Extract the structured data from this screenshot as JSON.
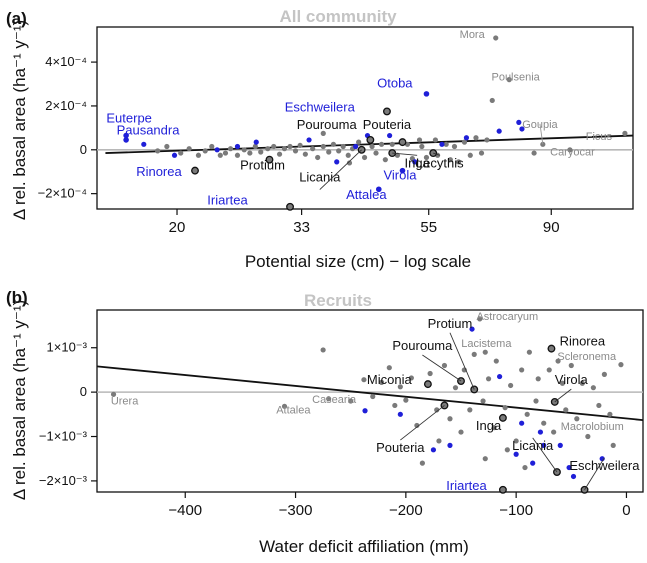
{
  "colors": {
    "gray_point": "#7a7a7a",
    "blue_point": "#1f1fd8",
    "highlight_point": "#3a3a3a",
    "zero_line": "#b8b8b8",
    "fit_line": "#111111",
    "blue_label": "#1f1fd8",
    "gray_label": "#8a8a8a",
    "black_label": "#111111"
  },
  "chart_data": [
    {
      "panel": "(a)",
      "type": "scatter",
      "title": "All community",
      "xlabel": "Potential size (cm) − log scale",
      "ylabel": "Δ rel. basal area (ha⁻¹ y⁻¹)",
      "x_scale": "log",
      "x_ticks": [
        20,
        33,
        55,
        90
      ],
      "xlim": [
        14.5,
        125
      ],
      "y_ticks": [
        -0.0002,
        0,
        0.0002,
        0.0004
      ],
      "y_tick_labels": [
        "−2×10⁻⁴",
        "0",
        "2×10⁻⁴",
        "4×10⁻⁴"
      ],
      "ylim": [
        -0.00027,
        0.00056
      ],
      "fit_line": [
        [
          15,
          -1.5e-05
        ],
        [
          125,
          6.5e-05
        ]
      ],
      "zero_line": 0,
      "highlighted": [
        {
          "name": "Euterpe",
          "x": 16.3,
          "y": 6.5e-05,
          "color": "blue"
        },
        {
          "name": "Pausandra",
          "x": 16.3,
          "y": 4.5e-05,
          "color": "blue"
        },
        {
          "name": "Rinorea",
          "x": 21.5,
          "y": -9.5e-05,
          "color": "black"
        },
        {
          "name": "Protium",
          "x": 29,
          "y": -4.5e-05,
          "color": "black"
        },
        {
          "name": "Iriartea",
          "x": 31.5,
          "y": -0.00026,
          "color": "black"
        },
        {
          "name": "Eschweilera",
          "x": 46.5,
          "y": 0.000175,
          "color": "black"
        },
        {
          "name": "Pourouma",
          "x": 43.5,
          "y": 4.5e-05,
          "color": "black"
        },
        {
          "name": "Pouteria",
          "x": 49.5,
          "y": 3.5e-05,
          "color": "black"
        },
        {
          "name": "Licania",
          "x": 42,
          "y": 0.0,
          "color": "black"
        },
        {
          "name": "Otoba",
          "x": 54.5,
          "y": 0.000255,
          "color": "blue"
        },
        {
          "name": "Attalea",
          "x": 45,
          "y": -0.00018,
          "color": "blue"
        },
        {
          "name": "Virola",
          "x": 49.5,
          "y": -9.5e-05,
          "color": "blue"
        },
        {
          "name": "Inga",
          "x": 47.5,
          "y": -1.5e-05,
          "color": "black"
        },
        {
          "name": "Lecythis",
          "x": 56,
          "y": -1.5e-05,
          "color": "black"
        },
        {
          "name": "Mora",
          "x": 72,
          "y": 0.00051,
          "color": "gray"
        },
        {
          "name": "Poulsenia",
          "x": 76,
          "y": 0.00032,
          "color": "gray"
        },
        {
          "name": "Goupia",
          "x": 87,
          "y": 2.5e-05,
          "color": "gray"
        },
        {
          "name": "Ficus",
          "x": 121,
          "y": 7.5e-05,
          "color": "gray"
        },
        {
          "name": "Caryocar",
          "x": 97,
          "y": 0.0,
          "color": "gray"
        }
      ],
      "labels": [
        {
          "text": "Euterpe",
          "x": 16.5,
          "y": 0.000125,
          "color": "blue"
        },
        {
          "text": "Pausandra",
          "x": 17.8,
          "y": 7e-05,
          "color": "blue"
        },
        {
          "text": "Rinorea",
          "x": 18.6,
          "y": -0.00012,
          "color": "blue"
        },
        {
          "text": "Protium",
          "x": 28.2,
          "y": -9e-05,
          "color": "black"
        },
        {
          "text": "Iriartea",
          "x": 24.5,
          "y": -0.00025,
          "color": "blue"
        },
        {
          "text": "Eschweilera",
          "x": 35.5,
          "y": 0.000175,
          "color": "blue"
        },
        {
          "text": "Pourouma",
          "x": 36.5,
          "y": 9.5e-05,
          "color": "black"
        },
        {
          "text": "Pouteria",
          "x": 46.5,
          "y": 9.5e-05,
          "color": "black"
        },
        {
          "text": "Licania",
          "x": 35.5,
          "y": -0.000145,
          "color": "black"
        },
        {
          "text": "Otoba",
          "x": 48,
          "y": 0.000285,
          "color": "blue"
        },
        {
          "text": "Attalea",
          "x": 42.8,
          "y": -0.000225,
          "color": "blue"
        },
        {
          "text": "Virola",
          "x": 49,
          "y": -0.000135,
          "color": "blue"
        },
        {
          "text": "Inga",
          "x": 52.5,
          "y": -8e-05,
          "color": "black"
        },
        {
          "text": "Lecythis",
          "x": 57.5,
          "y": -8e-05,
          "color": "black"
        },
        {
          "text": "Mora",
          "x": 65.5,
          "y": 0.00051,
          "color": "gray"
        },
        {
          "text": "Poulsenia",
          "x": 78,
          "y": 0.000315,
          "color": "gray"
        },
        {
          "text": "Goupia",
          "x": 86,
          "y": 0.0001,
          "color": "gray"
        },
        {
          "text": "Ficus",
          "x": 109,
          "y": 4.5e-05,
          "color": "gray"
        },
        {
          "text": "Caryocar",
          "x": 98,
          "y": -2.5e-05,
          "color": "gray"
        }
      ],
      "blue_points": [
        {
          "x": 17.5,
          "y": 2.5e-05
        },
        {
          "x": 19.8,
          "y": -2.5e-05
        },
        {
          "x": 23.5,
          "y": 0.0
        },
        {
          "x": 25.5,
          "y": 1.5e-05
        },
        {
          "x": 27.5,
          "y": 3.5e-05
        },
        {
          "x": 34,
          "y": 4.5e-05
        },
        {
          "x": 38,
          "y": -5.5e-05
        },
        {
          "x": 41,
          "y": 1.5e-05
        },
        {
          "x": 43,
          "y": 6.5e-05
        },
        {
          "x": 47,
          "y": 6.5e-05
        },
        {
          "x": 52,
          "y": -5.5e-05
        },
        {
          "x": 58,
          "y": 2.5e-05
        },
        {
          "x": 64,
          "y": 5.5e-05
        },
        {
          "x": 73,
          "y": 8.5e-05
        },
        {
          "x": 79,
          "y": 0.000125
        },
        {
          "x": 80,
          "y": 9.5e-05
        }
      ],
      "gray_points": [
        {
          "x": 18.5,
          "y": -5e-06
        },
        {
          "x": 19.2,
          "y": 1.5e-05
        },
        {
          "x": 20.3,
          "y": -1.5e-05
        },
        {
          "x": 21,
          "y": 5e-06
        },
        {
          "x": 21.8,
          "y": -2.5e-05
        },
        {
          "x": 22.4,
          "y": -5e-06
        },
        {
          "x": 23,
          "y": 1.5e-05
        },
        {
          "x": 23.8,
          "y": -2.5e-05
        },
        {
          "x": 24.3,
          "y": -1.5e-05
        },
        {
          "x": 24.8,
          "y": 5e-06
        },
        {
          "x": 25.5,
          "y": -2.5e-05
        },
        {
          "x": 26.2,
          "y": 0.0
        },
        {
          "x": 26.8,
          "y": -1.5e-05
        },
        {
          "x": 27.4,
          "y": 1.5e-05
        },
        {
          "x": 28,
          "y": -1e-05
        },
        {
          "x": 28.8,
          "y": 5e-06
        },
        {
          "x": 29.5,
          "y": 1.5e-05
        },
        {
          "x": 30.2,
          "y": -2e-05
        },
        {
          "x": 30.8,
          "y": 5e-06
        },
        {
          "x": 31.5,
          "y": 1.5e-05
        },
        {
          "x": 32.2,
          "y": -5e-06
        },
        {
          "x": 32.8,
          "y": 2e-05
        },
        {
          "x": 33.5,
          "y": -2e-05
        },
        {
          "x": 34.5,
          "y": 5e-06
        },
        {
          "x": 35.2,
          "y": -3.5e-05
        },
        {
          "x": 36,
          "y": 1.5e-05
        },
        {
          "x": 36.8,
          "y": -1e-05
        },
        {
          "x": 37.5,
          "y": 2.5e-05
        },
        {
          "x": 38.3,
          "y": -5e-06
        },
        {
          "x": 39,
          "y": 1.5e-05
        },
        {
          "x": 39.8,
          "y": -2.5e-05
        },
        {
          "x": 40.5,
          "y": 5e-06
        },
        {
          "x": 41.5,
          "y": 3.5e-05
        },
        {
          "x": 42.5,
          "y": -3.5e-05
        },
        {
          "x": 43.8,
          "y": 1.5e-05
        },
        {
          "x": 44.5,
          "y": -1.5e-05
        },
        {
          "x": 45.5,
          "y": 2.5e-05
        },
        {
          "x": 46.2,
          "y": -4.5e-05
        },
        {
          "x": 47.5,
          "y": 2.5e-05
        },
        {
          "x": 48.5,
          "y": -2.5e-05
        },
        {
          "x": 50.5,
          "y": 2.5e-05
        },
        {
          "x": 51.5,
          "y": -4e-05
        },
        {
          "x": 53,
          "y": 4.5e-05
        },
        {
          "x": 53.5,
          "y": 1.5e-05
        },
        {
          "x": 54.5,
          "y": -3.5e-05
        },
        {
          "x": 56.5,
          "y": 4.5e-05
        },
        {
          "x": 57,
          "y": -2.5e-05
        },
        {
          "x": 59,
          "y": 2.5e-05
        },
        {
          "x": 60,
          "y": -4.5e-05
        },
        {
          "x": 61,
          "y": 1.5e-05
        },
        {
          "x": 62,
          "y": -5.5e-05
        },
        {
          "x": 63.5,
          "y": 3.5e-05
        },
        {
          "x": 65,
          "y": -2.5e-05
        },
        {
          "x": 66.5,
          "y": 5.5e-05
        },
        {
          "x": 68,
          "y": -1.5e-05
        },
        {
          "x": 69.5,
          "y": 4.5e-05
        },
        {
          "x": 71,
          "y": 0.000225
        },
        {
          "x": 84,
          "y": -1.5e-05
        },
        {
          "x": 36,
          "y": 7.5e-05
        },
        {
          "x": 40,
          "y": -6e-05
        }
      ]
    },
    {
      "panel": "(b)",
      "type": "scatter",
      "title": "Recruits",
      "xlabel": "Water deficit affiliation (mm)",
      "ylabel": "Δ rel. basal area (ha⁻¹ y⁻¹)",
      "x_ticks": [
        -400,
        -300,
        -200,
        -100,
        0
      ],
      "x_tick_labels": [
        "−400",
        "−300",
        "−200",
        "−100",
        "0"
      ],
      "xlim": [
        -480,
        15
      ],
      "y_ticks": [
        -0.002,
        -0.001,
        0,
        0.001
      ],
      "y_tick_labels": [
        "−2×10⁻³",
        "−1×10⁻³",
        "0",
        "1×10⁻³"
      ],
      "ylim": [
        -0.00225,
        0.00185
      ],
      "fit_line": [
        [
          -480,
          0.00058
        ],
        [
          15,
          -0.00063
        ]
      ],
      "zero_line": 0,
      "highlighted": [
        {
          "name": "Protium",
          "x": -138,
          "y": 6e-05,
          "color": "black"
        },
        {
          "name": "Pourouma",
          "x": -150,
          "y": 0.00025,
          "color": "black"
        },
        {
          "name": "Miconia",
          "x": -180,
          "y": 0.00018,
          "color": "black"
        },
        {
          "name": "Pouteria",
          "x": -165,
          "y": -0.0003,
          "color": "black"
        },
        {
          "name": "Inga",
          "x": -112,
          "y": -0.00058,
          "color": "black"
        },
        {
          "name": "Rinorea",
          "x": -68,
          "y": 0.00098,
          "color": "black"
        },
        {
          "name": "Virola",
          "x": -65,
          "y": -0.00022,
          "color": "black"
        },
        {
          "name": "Licania",
          "x": -63,
          "y": -0.0018,
          "color": "black"
        },
        {
          "name": "Eschweilera",
          "x": -38,
          "y": -0.0022,
          "color": "black"
        },
        {
          "name": "Iriartea",
          "x": -112,
          "y": -0.0022,
          "color": "black"
        },
        {
          "name": "Urera",
          "x": -465,
          "y": -5e-05,
          "color": "gray"
        },
        {
          "name": "Attalea",
          "x": -310,
          "y": -0.00032,
          "color": "gray"
        },
        {
          "name": "Casearia",
          "x": -270,
          "y": -0.00015,
          "color": "gray"
        },
        {
          "name": "Astrocaryum",
          "x": -133,
          "y": 0.00165,
          "color": "gray"
        },
        {
          "name": "Lacistema",
          "x": -128,
          "y": 0.0009,
          "color": "gray"
        },
        {
          "name": "Scleronema",
          "x": -62,
          "y": 0.0007,
          "color": "gray"
        },
        {
          "name": "Macrolobium",
          "x": -15,
          "y": -0.0005,
          "color": "gray"
        }
      ],
      "labels": [
        {
          "text": "Protium",
          "x": -160,
          "y": 0.00145,
          "color": "black"
        },
        {
          "text": "Pourouma",
          "x": -185,
          "y": 0.00095,
          "color": "black"
        },
        {
          "text": "Miconia",
          "x": -215,
          "y": 0.00018,
          "color": "black"
        },
        {
          "text": "Pouteria",
          "x": -205,
          "y": -0.00135,
          "color": "black"
        },
        {
          "text": "Inga",
          "x": -125,
          "y": -0.00085,
          "color": "black"
        },
        {
          "text": "Rinorea",
          "x": -40,
          "y": 0.00105,
          "color": "black"
        },
        {
          "text": "Virola",
          "x": -50,
          "y": 0.00018,
          "color": "black"
        },
        {
          "text": "Licania",
          "x": -85,
          "y": -0.0013,
          "color": "black"
        },
        {
          "text": "Eschweilera",
          "x": -20,
          "y": -0.00175,
          "color": "black"
        },
        {
          "text": "Iriartea",
          "x": -145,
          "y": -0.0022,
          "color": "blue"
        },
        {
          "text": "Urera",
          "x": -455,
          "y": -0.00028,
          "color": "gray"
        },
        {
          "text": "Attalea",
          "x": -302,
          "y": -0.00048,
          "color": "gray"
        },
        {
          "text": "Casearia",
          "x": -265,
          "y": -0.00025,
          "color": "gray"
        },
        {
          "text": "Astrocaryum",
          "x": -108,
          "y": 0.00162,
          "color": "gray"
        },
        {
          "text": "Lacistema",
          "x": -127,
          "y": 0.00102,
          "color": "gray"
        },
        {
          "text": "Scleronema",
          "x": -36,
          "y": 0.00072,
          "color": "gray"
        },
        {
          "text": "Macrolobium",
          "x": -31,
          "y": -0.00085,
          "color": "gray"
        }
      ],
      "blue_points": [
        {
          "x": -237,
          "y": -0.00042
        },
        {
          "x": -175,
          "y": -0.0013
        },
        {
          "x": -160,
          "y": -0.0012
        },
        {
          "x": -140,
          "y": 0.00142
        },
        {
          "x": -115,
          "y": 0.00035
        },
        {
          "x": -100,
          "y": -0.0014
        },
        {
          "x": -95,
          "y": -0.0007
        },
        {
          "x": -85,
          "y": -0.0016
        },
        {
          "x": -78,
          "y": -0.0009
        },
        {
          "x": -75,
          "y": -0.0012
        },
        {
          "x": -60,
          "y": -0.0012
        },
        {
          "x": -52,
          "y": -0.0017
        },
        {
          "x": -48,
          "y": -0.0019
        },
        {
          "x": -22,
          "y": -0.0015
        },
        {
          "x": -205,
          "y": -0.0005
        }
      ],
      "gray_points": [
        {
          "x": -275,
          "y": 0.00095
        },
        {
          "x": -238,
          "y": 0.00028
        },
        {
          "x": -230,
          "y": -0.0001
        },
        {
          "x": -222,
          "y": 0.00022
        },
        {
          "x": -215,
          "y": 0.00055
        },
        {
          "x": -210,
          "y": -0.0003
        },
        {
          "x": -205,
          "y": 0.00012
        },
        {
          "x": -200,
          "y": -0.00018
        },
        {
          "x": -195,
          "y": 0.00032
        },
        {
          "x": -190,
          "y": -0.00075
        },
        {
          "x": -185,
          "y": -0.0016
        },
        {
          "x": -178,
          "y": 0.00042
        },
        {
          "x": -172,
          "y": -0.0004
        },
        {
          "x": -165,
          "y": 0.0006
        },
        {
          "x": -160,
          "y": -0.0006
        },
        {
          "x": -155,
          "y": 0.0001
        },
        {
          "x": -150,
          "y": -0.0009
        },
        {
          "x": -147,
          "y": 0.0005
        },
        {
          "x": -142,
          "y": -0.0004
        },
        {
          "x": -138,
          "y": 0.00085
        },
        {
          "x": -130,
          "y": -0.0002
        },
        {
          "x": -125,
          "y": 0.0003
        },
        {
          "x": -120,
          "y": -0.0008
        },
        {
          "x": -118,
          "y": 0.0007
        },
        {
          "x": -110,
          "y": -0.00035
        },
        {
          "x": -105,
          "y": 0.00015
        },
        {
          "x": -100,
          "y": -0.0011
        },
        {
          "x": -95,
          "y": 0.0005
        },
        {
          "x": -90,
          "y": -0.0005
        },
        {
          "x": -88,
          "y": 0.0009
        },
        {
          "x": -82,
          "y": -0.0002
        },
        {
          "x": -80,
          "y": 0.0003
        },
        {
          "x": -75,
          "y": -0.0007
        },
        {
          "x": -70,
          "y": 0.0005
        },
        {
          "x": -66,
          "y": -0.0009
        },
        {
          "x": -58,
          "y": 0.0002
        },
        {
          "x": -55,
          "y": -0.0004
        },
        {
          "x": -50,
          "y": 0.0006
        },
        {
          "x": -45,
          "y": -0.0006
        },
        {
          "x": -40,
          "y": 0.0002
        },
        {
          "x": -35,
          "y": -0.001
        },
        {
          "x": -30,
          "y": 0.0001
        },
        {
          "x": -25,
          "y": -0.0003
        },
        {
          "x": -20,
          "y": 0.0004
        },
        {
          "x": -12,
          "y": -0.0012
        },
        {
          "x": -5,
          "y": 0.00062
        },
        {
          "x": -170,
          "y": -0.0011
        },
        {
          "x": -128,
          "y": -0.0015
        },
        {
          "x": -108,
          "y": -0.0013
        },
        {
          "x": -92,
          "y": -0.0017
        },
        {
          "x": -250,
          "y": -0.0002
        }
      ]
    }
  ]
}
